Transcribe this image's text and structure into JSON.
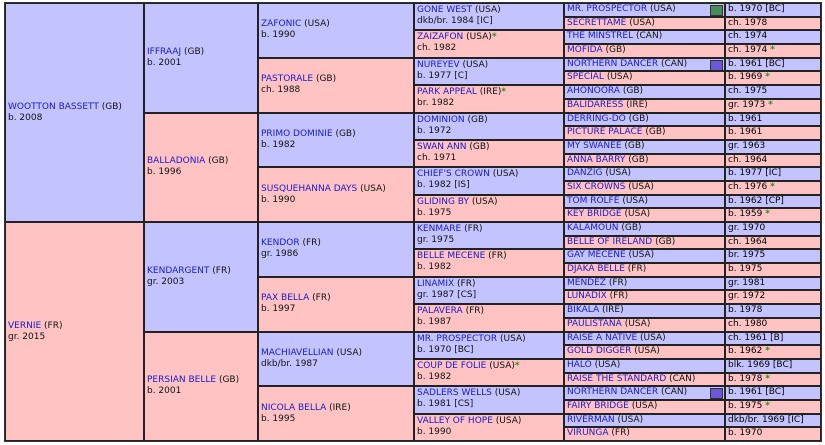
{
  "gen1": [
    {
      "name": "WOOTTON BASSETT",
      "country": "(GB)",
      "info": "b. 2008",
      "sex": "m"
    },
    {
      "name": "VERNIE",
      "country": "(FR)",
      "info": "gr. 2015",
      "sex": "f"
    }
  ],
  "gen2": [
    {
      "name": "IFFRAAJ",
      "country": "(GB)",
      "info": "b. 2001",
      "sex": "m"
    },
    {
      "name": "BALLADONIA",
      "country": "(GB)",
      "info": "b. 1996",
      "sex": "f"
    },
    {
      "name": "KENDARGENT",
      "country": "(FR)",
      "info": "gr. 2003",
      "sex": "m"
    },
    {
      "name": "PERSIAN BELLE",
      "country": "(GB)",
      "info": "b. 2001",
      "sex": "f"
    }
  ],
  "gen3": [
    {
      "name": "ZAFONIC",
      "country": "(USA)",
      "info": "b. 1990",
      "sex": "m"
    },
    {
      "name": "PASTORALE",
      "country": "(GB)",
      "info": "ch. 1988",
      "sex": "f"
    },
    {
      "name": "PRIMO DOMINIE",
      "country": "(GB)",
      "info": "b. 1982",
      "sex": "m"
    },
    {
      "name": "SUSQUEHANNA DAYS",
      "country": "(USA)",
      "info": "b. 1990",
      "sex": "f"
    },
    {
      "name": "KENDOR",
      "country": "(FR)",
      "info": "gr. 1986",
      "sex": "m"
    },
    {
      "name": "PAX BELLA",
      "country": "(FR)",
      "info": "b. 1997",
      "sex": "f"
    },
    {
      "name": "MACHIAVELLIAN",
      "country": "(USA)",
      "info": "dkb/br. 1987",
      "sex": "m"
    },
    {
      "name": "NICOLA BELLA",
      "country": "(IRE)",
      "info": "b. 1995",
      "sex": "f"
    }
  ],
  "gen4": [
    {
      "name": "GONE WEST",
      "country": "(USA)",
      "info": "dkb/br. 1984 [IC]",
      "sex": "m",
      "star": ""
    },
    {
      "name": "ZAIZAFON",
      "country": "(USA)",
      "info": "ch. 1982",
      "sex": "f",
      "star": "*"
    },
    {
      "name": "NUREYEV",
      "country": "(USA)",
      "info": "b. 1977 [C]",
      "sex": "m",
      "star": ""
    },
    {
      "name": "PARK APPEAL",
      "country": "(IRE)",
      "info": "br. 1982",
      "sex": "f",
      "star": "*"
    },
    {
      "name": "DOMINION",
      "country": "(GB)",
      "info": "b. 1972",
      "sex": "m",
      "star": ""
    },
    {
      "name": "SWAN ANN",
      "country": "(GB)",
      "info": "ch. 1971",
      "sex": "f",
      "star": ""
    },
    {
      "name": "CHIEF'S CROWN",
      "country": "(USA)",
      "info": "b. 1982 [IS]",
      "sex": "m",
      "star": ""
    },
    {
      "name": "GLIDING BY",
      "country": "(USA)",
      "info": "b. 1975",
      "sex": "f",
      "star": ""
    },
    {
      "name": "KENMARE",
      "country": "(FR)",
      "info": "gr. 1975",
      "sex": "m",
      "star": ""
    },
    {
      "name": "BELLE MECENE",
      "country": "(FR)",
      "info": "b. 1982",
      "sex": "f",
      "star": ""
    },
    {
      "name": "LINAMIX",
      "country": "(FR)",
      "info": "gr. 1987 [CS]",
      "sex": "m",
      "star": ""
    },
    {
      "name": "PALAVERA",
      "country": "(FR)",
      "info": "b. 1987",
      "sex": "f",
      "star": ""
    },
    {
      "name": "MR. PROSPECTOR",
      "country": "(USA)",
      "info": "b. 1970 [BC]",
      "sex": "m",
      "star": ""
    },
    {
      "name": "COUP DE FOLIE",
      "country": "(USA)",
      "info": "b. 1982",
      "sex": "f",
      "star": "*"
    },
    {
      "name": "SADLERS WELLS",
      "country": "(USA)",
      "info": "b. 1981 [CS]",
      "sex": "m",
      "star": ""
    },
    {
      "name": "VALLEY OF HOPE",
      "country": "(USA)",
      "info": "b. 1990",
      "sex": "f",
      "star": ""
    }
  ],
  "gen5": [
    {
      "name": "MR. PROSPECTOR",
      "country": "(USA)",
      "info": "b. 1970 [BC]",
      "sex": "m",
      "star": "",
      "box": "#4a8a5a"
    },
    {
      "name": "SECRETTAME",
      "country": "(USA)",
      "info": "ch. 1978",
      "sex": "f",
      "star": "",
      "box": ""
    },
    {
      "name": "THE MINSTREL",
      "country": "(CAN)",
      "info": "ch. 1974",
      "sex": "m",
      "star": "",
      "box": ""
    },
    {
      "name": "MOFIDA",
      "country": "(GB)",
      "info": "ch. 1974",
      "sex": "f",
      "star": "*",
      "box": ""
    },
    {
      "name": "NORTHERN DANCER",
      "country": "(CAN)",
      "info": "b. 1961 [BC]",
      "sex": "m",
      "star": "",
      "box": "#6a5ad8"
    },
    {
      "name": "SPECIAL",
      "country": "(USA)",
      "info": "b. 1969",
      "sex": "f",
      "star": "*",
      "box": ""
    },
    {
      "name": "AHONOORA",
      "country": "(GB)",
      "info": "ch. 1975",
      "sex": "m",
      "star": "",
      "box": ""
    },
    {
      "name": "BALIDARESS",
      "country": "(IRE)",
      "info": "gr. 1973",
      "sex": "f",
      "star": "*",
      "box": ""
    },
    {
      "name": "DERRING-DO",
      "country": "(GB)",
      "info": "b. 1961",
      "sex": "m",
      "star": "",
      "box": ""
    },
    {
      "name": "PICTURE PALACE",
      "country": "(GB)",
      "info": "b. 1961",
      "sex": "f",
      "star": "",
      "box": ""
    },
    {
      "name": "MY SWANEE",
      "country": "(GB)",
      "info": "gr. 1963",
      "sex": "m",
      "star": "",
      "box": ""
    },
    {
      "name": "ANNA BARRY",
      "country": "(GB)",
      "info": "ch. 1964",
      "sex": "f",
      "star": "",
      "box": ""
    },
    {
      "name": "DANZIG",
      "country": "(USA)",
      "info": "b. 1977 [IC]",
      "sex": "m",
      "star": "",
      "box": ""
    },
    {
      "name": "SIX CROWNS",
      "country": "(USA)",
      "info": "ch. 1976",
      "sex": "f",
      "star": "*",
      "box": ""
    },
    {
      "name": "TOM ROLFE",
      "country": "(USA)",
      "info": "b. 1962 [CP]",
      "sex": "m",
      "star": "",
      "box": ""
    },
    {
      "name": "KEY BRIDGE",
      "country": "(USA)",
      "info": "b. 1959",
      "sex": "f",
      "star": "*",
      "box": ""
    },
    {
      "name": "KALAMOUN",
      "country": "(GB)",
      "info": "gr. 1970",
      "sex": "m",
      "star": "",
      "box": ""
    },
    {
      "name": "BELLE OF IRELAND",
      "country": "(GB)",
      "info": "ch. 1964",
      "sex": "f",
      "star": "",
      "box": ""
    },
    {
      "name": "GAY MECENE",
      "country": "(USA)",
      "info": "br. 1975",
      "sex": "m",
      "star": "",
      "box": ""
    },
    {
      "name": "DJAKA BELLE",
      "country": "(FR)",
      "info": "b. 1975",
      "sex": "f",
      "star": "",
      "box": ""
    },
    {
      "name": "MENDEZ",
      "country": "(FR)",
      "info": "gr. 1981",
      "sex": "m",
      "star": "",
      "box": ""
    },
    {
      "name": "LUNADIX",
      "country": "(FR)",
      "info": "gr. 1972",
      "sex": "f",
      "star": "",
      "box": ""
    },
    {
      "name": "BIKALA",
      "country": "(IRE)",
      "info": "b. 1978",
      "sex": "m",
      "star": "",
      "box": ""
    },
    {
      "name": "PAULISTANA",
      "country": "(USA)",
      "info": "ch. 1980",
      "sex": "f",
      "star": "",
      "box": ""
    },
    {
      "name": "RAISE A NATIVE",
      "country": "(USA)",
      "info": "ch. 1961 [B]",
      "sex": "m",
      "star": "",
      "box": ""
    },
    {
      "name": "GOLD DIGGER",
      "country": "(USA)",
      "info": "b. 1962",
      "sex": "f",
      "star": "*",
      "box": ""
    },
    {
      "name": "HALO",
      "country": "(USA)",
      "info": "blk. 1969 [BC]",
      "sex": "m",
      "star": "",
      "box": ""
    },
    {
      "name": "RAISE THE STANDARD",
      "country": "(CAN)",
      "info": "b. 1978",
      "sex": "f",
      "star": "*",
      "box": ""
    },
    {
      "name": "NORTHERN DANCER",
      "country": "(CAN)",
      "info": "b. 1961 [BC]",
      "sex": "m",
      "star": "",
      "box": "#6a5ad8"
    },
    {
      "name": "FAIRY BRIDGE",
      "country": "(USA)",
      "info": "b. 1975",
      "sex": "f",
      "star": "*",
      "box": ""
    },
    {
      "name": "RIVERMAN",
      "country": "(USA)",
      "info": "dkb/br. 1969 [IC]",
      "sex": "m",
      "star": "",
      "box": ""
    },
    {
      "name": "VIRUNGA",
      "country": "(FR)",
      "info": "b. 1970",
      "sex": "f",
      "star": "",
      "box": ""
    }
  ],
  "colors": {
    "male": "#c3c3ff",
    "female": "#ffc3c3",
    "link": "#1a1ac8",
    "star": "#2a8a2a",
    "border": "#222222"
  }
}
